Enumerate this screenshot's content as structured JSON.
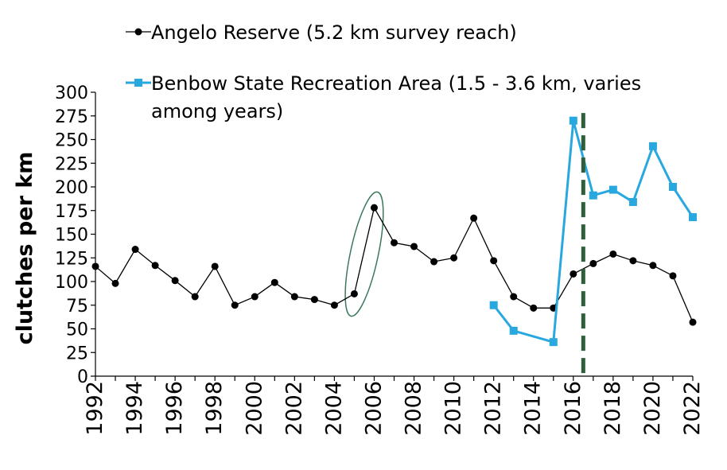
{
  "chart_data": {
    "type": "line",
    "title": "",
    "xlabel": "",
    "ylabel": "clutches per km",
    "xlim": [
      1992,
      2022
    ],
    "ylim": [
      0,
      300
    ],
    "y_ticks": [
      0,
      25,
      50,
      75,
      100,
      125,
      150,
      175,
      200,
      225,
      250,
      275,
      300
    ],
    "x_tick_labels": [
      "1992",
      "1994",
      "1996",
      "1998",
      "2000",
      "2002",
      "2004",
      "2006",
      "2008",
      "2010",
      "2012",
      "2014",
      "2016",
      "2018",
      "2020",
      "2022"
    ],
    "grid": false,
    "legend_position": "top",
    "series": [
      {
        "name": "Angelo Reserve (5.2 km survey reach)",
        "color": "#000000",
        "marker": "circle",
        "x": [
          1992,
          1993,
          1994,
          1995,
          1996,
          1997,
          1998,
          1999,
          2000,
          2001,
          2002,
          2003,
          2004,
          2005,
          2006,
          2007,
          2008,
          2009,
          2010,
          2011,
          2012,
          2013,
          2014,
          2015,
          2016,
          2017,
          2018,
          2019,
          2020,
          2021,
          2022
        ],
        "y": [
          116,
          98,
          134,
          117,
          101,
          84,
          116,
          75,
          84,
          99,
          84,
          81,
          75,
          87,
          178,
          141,
          137,
          121,
          125,
          167,
          122,
          84,
          72,
          72,
          108,
          119,
          129,
          122,
          117,
          106,
          57
        ]
      },
      {
        "name": "Benbow State Recreation Area (1.5 - 3.6 km, varies among years)",
        "legend_lines": [
          "Benbow State Recreation Area (1.5 - 3.6 km, varies",
          "among years)"
        ],
        "color": "#29a8df",
        "marker": "square",
        "x": [
          2012,
          2013,
          2014,
          2015,
          2016,
          2017,
          2018,
          2019,
          2020,
          2021,
          2022
        ],
        "y": [
          75,
          48,
          null,
          36,
          270,
          191,
          197,
          184,
          243,
          200,
          168
        ]
      }
    ],
    "annotations": {
      "dashed_line_x": 2016.5,
      "dashed_line_color": "#2e5e3a",
      "ellipse_color": "#3a7a5a",
      "ellipse_center": [
        2005.5,
        129
      ],
      "ellipse_rx_years": 0.7,
      "ellipse_ry_value": 67
    }
  }
}
